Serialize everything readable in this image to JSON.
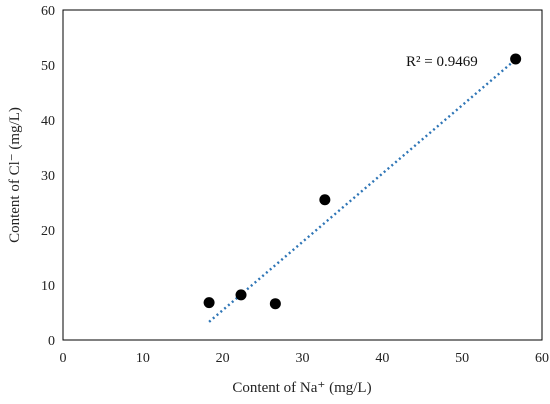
{
  "chart_data": {
    "type": "scatter",
    "title": "",
    "xlabel": "Content of Na⁺ (mg/L)",
    "ylabel": "Content of Cl⁻ (mg/L)",
    "xlim": [
      0,
      60
    ],
    "ylim": [
      0,
      60
    ],
    "x_ticks": [
      0,
      10,
      20,
      30,
      40,
      50,
      60
    ],
    "y_ticks": [
      0,
      10,
      20,
      30,
      40,
      50,
      60
    ],
    "grid": false,
    "legend": "none",
    "series": [
      {
        "points": [
          {
            "x": 18.3,
            "y": 6.8
          },
          {
            "x": 22.3,
            "y": 8.2
          },
          {
            "x": 26.6,
            "y": 6.6
          },
          {
            "x": 32.8,
            "y": 25.5
          },
          {
            "x": 56.7,
            "y": 51.1
          }
        ],
        "color": "#000000"
      }
    ],
    "trendline": {
      "style": "dotted",
      "color": "#2e75b6",
      "x_start": 18.3,
      "y_start": 3.3,
      "x_end": 56.7,
      "y_end": 51.0
    },
    "annotations": [
      {
        "text": "R² = 0.9469"
      }
    ]
  }
}
